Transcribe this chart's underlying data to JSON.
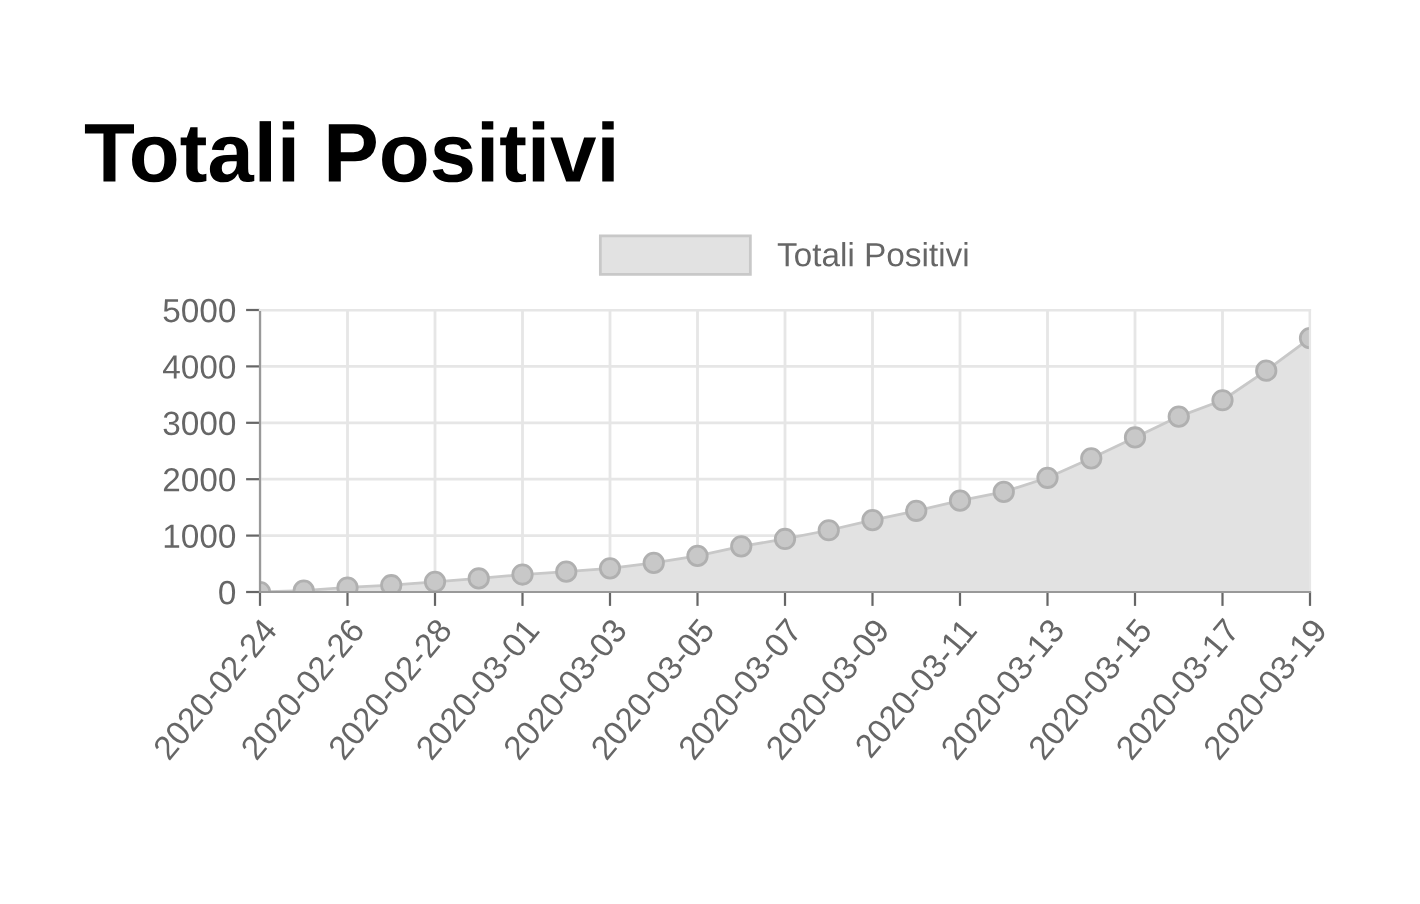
{
  "chart_data": {
    "type": "area",
    "title": "Totali Positivi",
    "categories": [
      "2020-02-24",
      null,
      "2020-02-26",
      null,
      "2020-02-28",
      null,
      "2020-03-01",
      null,
      "2020-03-03",
      null,
      "2020-03-05",
      null,
      "2020-03-07",
      null,
      "2020-03-09",
      null,
      "2020-03-11",
      null,
      "2020-03-13",
      null,
      "2020-03-15",
      null,
      "2020-03-17",
      null,
      "2020-03-19"
    ],
    "series": [
      {
        "name": "Totali Positivi",
        "color": "#c8c8c8",
        "values": [
          0,
          25,
          80,
          120,
          180,
          240,
          310,
          360,
          420,
          515,
          640,
          810,
          940,
          1095,
          1275,
          1440,
          1620,
          1775,
          2025,
          2370,
          2740,
          3110,
          3400,
          3925,
          4500
        ]
      }
    ],
    "ylim": [
      0,
      5000
    ],
    "yticks": [
      0,
      1000,
      2000,
      3000,
      4000,
      5000
    ],
    "grid": true,
    "legend": "top",
    "marker": "circle"
  }
}
